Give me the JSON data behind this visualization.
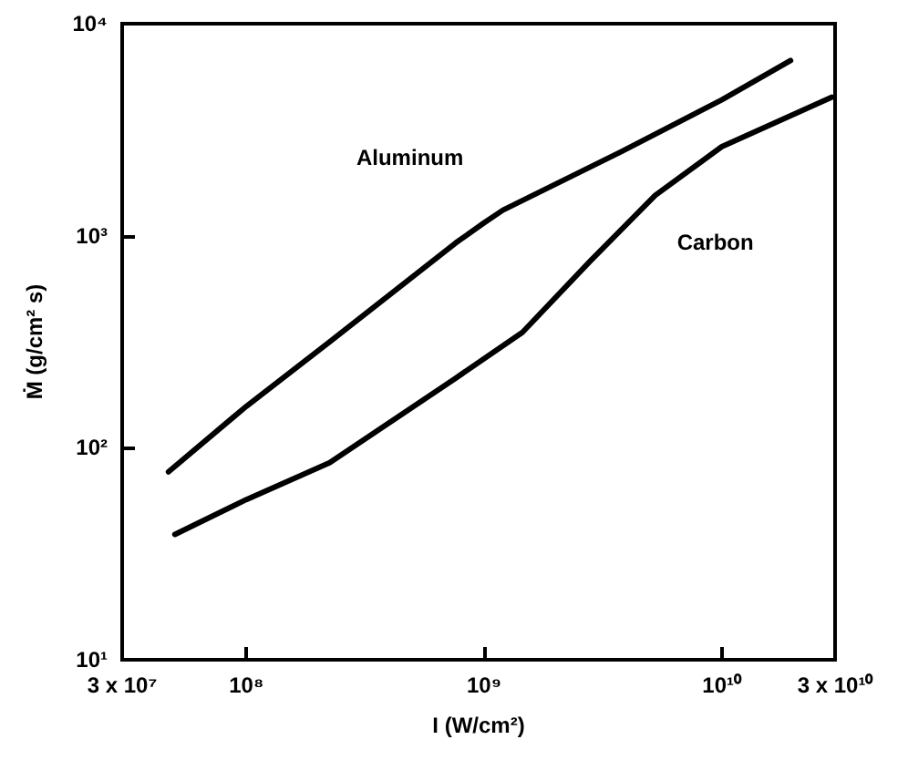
{
  "chart_data": {
    "type": "line",
    "xlabel": "I (W/cm²)",
    "ylabel": "Ṁ (g/cm² s)",
    "log": "xy",
    "grid": false,
    "legend": false,
    "marker": "none",
    "line_style": "solid",
    "xlim": [
      30000000,
      30000000000
    ],
    "xticks": [
      {
        "value": 30000000,
        "label": "3 x 10⁷"
      },
      {
        "value": 100000000,
        "label": "10⁸"
      },
      {
        "value": 1000000000,
        "label": "10⁹"
      },
      {
        "value": 10000000000,
        "label": "10¹⁰"
      },
      {
        "value": 30000000000,
        "label": "3 x 10¹⁰"
      }
    ],
    "ylim": [
      10,
      10000
    ],
    "yticks": [
      {
        "value": 10,
        "label": "10¹"
      },
      {
        "value": 100,
        "label": "10²"
      },
      {
        "value": 1000,
        "label": "10³"
      },
      {
        "value": 10000,
        "label": "10⁴"
      }
    ],
    "series": [
      {
        "name": "Aluminum",
        "color": "#000000",
        "x": [
          47000000,
          100000000,
          224000000,
          760000000,
          1000000000,
          1200000000,
          3800000000,
          10000000000,
          19500000000
        ],
        "values": [
          77,
          157,
          316,
          925,
          1150,
          1320,
          2500,
          4370,
          6700
        ]
      },
      {
        "name": "Carbon",
        "color": "#000000",
        "x": [
          50000000,
          100000000,
          224000000,
          760000000,
          1450000000,
          2800000000,
          5250000000,
          10000000000,
          29000000000
        ],
        "values": [
          39,
          57,
          85,
          213,
          350,
          760,
          1550,
          2630,
          4500
        ]
      }
    ]
  }
}
